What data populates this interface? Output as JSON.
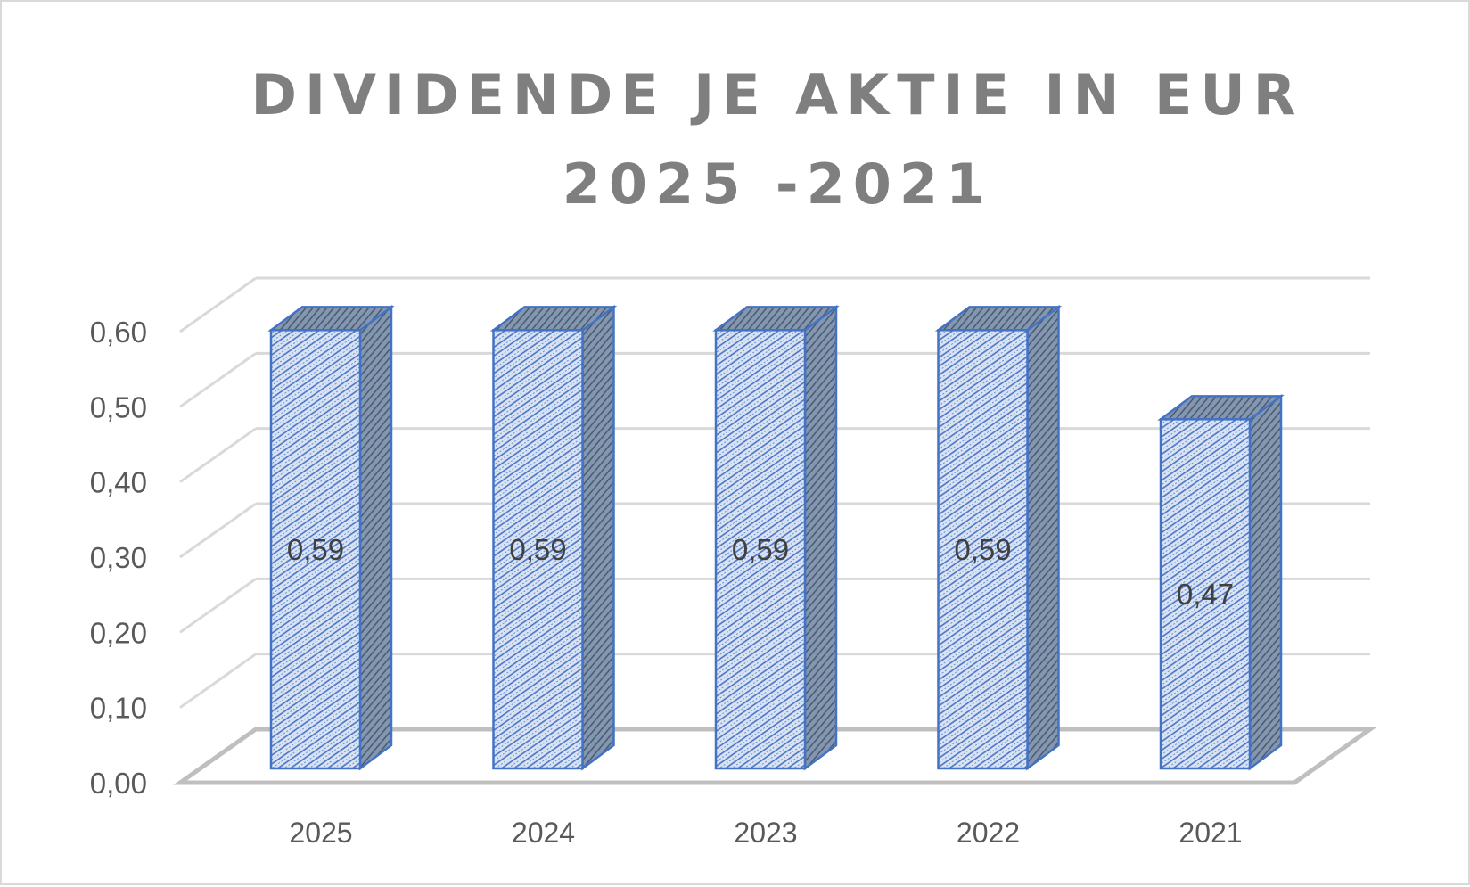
{
  "chart_data": {
    "type": "bar",
    "title_lines": [
      "DIVIDENDE JE AKTIE IN EUR",
      "2025 -2021"
    ],
    "categories": [
      "2025",
      "2024",
      "2023",
      "2022",
      "2021"
    ],
    "values": [
      0.59,
      0.59,
      0.59,
      0.59,
      0.47
    ],
    "data_labels": [
      "0,59",
      "0,59",
      "0,59",
      "0,59",
      "0,47"
    ],
    "y_ticks": [
      "0,00",
      "0,10",
      "0,20",
      "0,30",
      "0,40",
      "0,50",
      "0,60"
    ],
    "ylim": [
      0,
      0.6
    ],
    "grid": true,
    "three_d": true,
    "colors": {
      "bar_front": "#dae3f3",
      "bar_hatch": "#4472c4",
      "bar_side": "#8497b0",
      "bar_edge": "#4472c4",
      "grid": "#d9d9d9",
      "floor": "#bfbfbf",
      "text": "#595959",
      "title": "#7f7f7f"
    }
  }
}
